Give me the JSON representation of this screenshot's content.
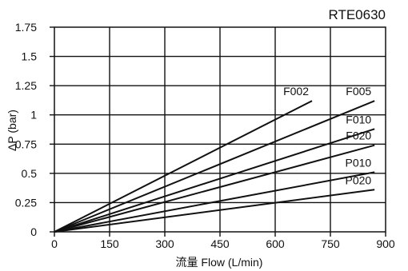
{
  "chart_data": {
    "type": "line",
    "title": "RTE0630",
    "xlabel": "流量 Flow (L/min)",
    "ylabel": "ΔP (bar)",
    "xlim": [
      0,
      900
    ],
    "ylim": [
      0,
      1.75
    ],
    "x_ticks": [
      0,
      150,
      300,
      450,
      600,
      750,
      900
    ],
    "y_ticks": [
      0,
      0.25,
      0.5,
      0.75,
      1,
      1.25,
      1.5,
      1.75
    ],
    "x_tick_labels": [
      "0",
      "150",
      "300",
      "450",
      "600",
      "750",
      "900"
    ],
    "y_tick_labels": [
      "0",
      "0.25",
      "0.5",
      "0.75",
      "1",
      "1.25",
      "1.5",
      "1.75"
    ],
    "grid": true,
    "series": [
      {
        "name": "F002",
        "x": [
          0,
          700
        ],
        "y": [
          0,
          1.12
        ]
      },
      {
        "name": "F005",
        "x": [
          0,
          870
        ],
        "y": [
          0,
          1.12
        ]
      },
      {
        "name": "F010",
        "x": [
          0,
          870
        ],
        "y": [
          0,
          0.88
        ]
      },
      {
        "name": "F020",
        "x": [
          0,
          870
        ],
        "y": [
          0,
          0.74
        ]
      },
      {
        "name": "P010",
        "x": [
          0,
          870
        ],
        "y": [
          0,
          0.51
        ]
      },
      {
        "name": "P020",
        "x": [
          0,
          870
        ],
        "y": [
          0,
          0.36
        ]
      }
    ],
    "colors": {
      "line": "#111111",
      "grid": "#111111",
      "background": "#ffffff"
    }
  }
}
